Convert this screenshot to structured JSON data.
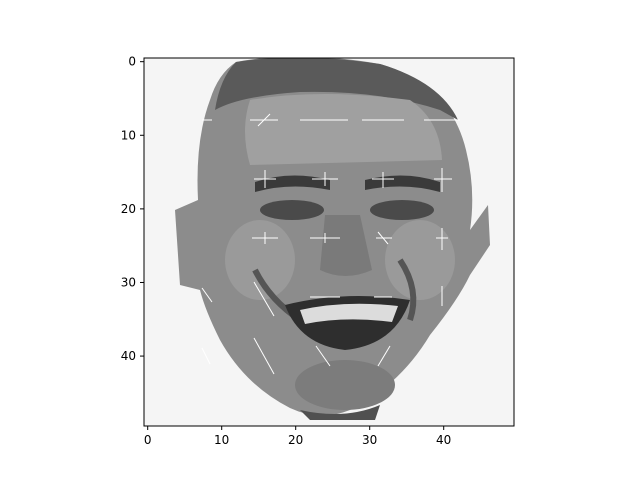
{
  "figure": {
    "image_subject": "grayscale pixelated face",
    "colormap": "gray",
    "background_gray": "#f5f5f5",
    "overlay_color": "#ffffff"
  },
  "axes": {
    "x_ticks": [
      "0",
      "10",
      "20",
      "30",
      "40"
    ],
    "y_ticks": [
      "0",
      "10",
      "20",
      "30",
      "40"
    ],
    "x_range": [
      -0.5,
      49.5
    ],
    "y_range": [
      49.5,
      -0.5
    ]
  },
  "overlay": {
    "description_none": "",
    "feature_points": [
      {
        "x": 8,
        "y": 8
      },
      {
        "x": 16,
        "y": 8
      },
      {
        "x": 24,
        "y": 8
      },
      {
        "x": 32,
        "y": 8
      },
      {
        "x": 40,
        "y": 8
      },
      {
        "x": 8,
        "y": 16
      },
      {
        "x": 16,
        "y": 16
      },
      {
        "x": 24,
        "y": 16
      },
      {
        "x": 32,
        "y": 16
      },
      {
        "x": 40,
        "y": 16
      },
      {
        "x": 8,
        "y": 24
      },
      {
        "x": 16,
        "y": 24
      },
      {
        "x": 24,
        "y": 24
      },
      {
        "x": 32,
        "y": 24
      },
      {
        "x": 40,
        "y": 24
      },
      {
        "x": 8,
        "y": 32
      },
      {
        "x": 16,
        "y": 32
      },
      {
        "x": 24,
        "y": 32
      },
      {
        "x": 32,
        "y": 32
      },
      {
        "x": 40,
        "y": 32
      },
      {
        "x": 8,
        "y": 40
      },
      {
        "x": 16,
        "y": 40
      },
      {
        "x": 24,
        "y": 40
      },
      {
        "x": 32,
        "y": 40
      }
    ]
  }
}
